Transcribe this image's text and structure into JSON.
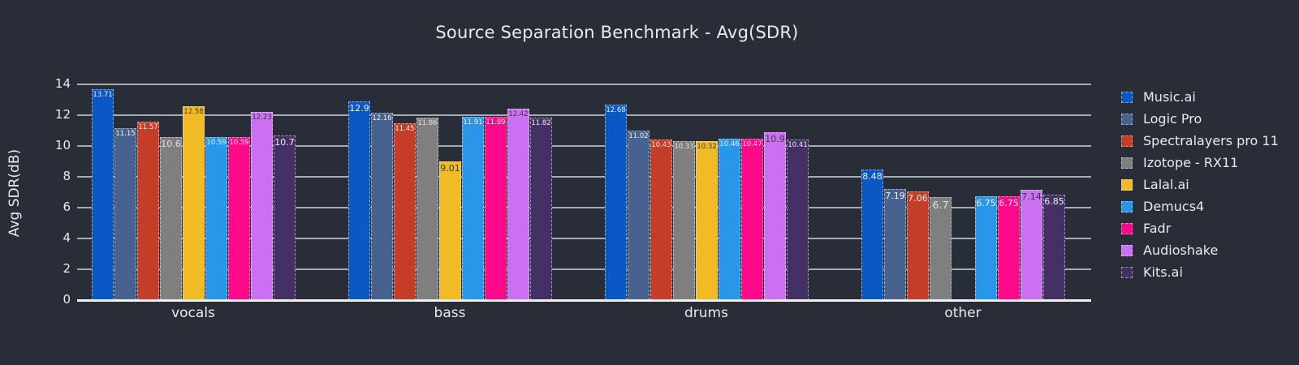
{
  "colors": {
    "background": "#282d37",
    "gridline": "#a6abb3",
    "axis_line": "#efefef",
    "text": "#e8eaed",
    "dark_label": "#3a3a3a",
    "light_label": "#f0f0f0"
  },
  "chart_data": {
    "type": "bar",
    "title": "Source Separation Benchmark - Avg(SDR)",
    "xlabel": "",
    "ylabel": "Avg SDR(dB)",
    "categories": [
      "vocals",
      "bass",
      "drums",
      "other"
    ],
    "yticks": [
      0,
      2,
      4,
      6,
      8,
      10,
      12,
      14
    ],
    "ylim": [
      0,
      14
    ],
    "grid": true,
    "legend_position": "right",
    "series": [
      {
        "name": "Music.ai",
        "color": "#0a58c4",
        "label_color": "#f0f0f0",
        "values": [
          13.71,
          12.9,
          12.68,
          8.48
        ]
      },
      {
        "name": "Logic Pro",
        "color": "#47628f",
        "label_color": "#f0f0f0",
        "values": [
          11.15,
          12.16,
          11.02,
          7.19
        ]
      },
      {
        "name": "Spectralayers pro 11",
        "color": "#c43d27",
        "label_color": "#f0f0f0",
        "values": [
          11.57,
          11.45,
          10.43,
          7.06
        ]
      },
      {
        "name": "Izotope - RX11",
        "color": "#7f7f7f",
        "label_color": "#e2e2e2",
        "values": [
          10.6,
          11.86,
          10.33,
          6.7
        ]
      },
      {
        "name": "Lalal.ai",
        "color": "#f1bb26",
        "label_color": "#3a3a3a",
        "values": [
          12.58,
          9.01,
          10.32,
          null
        ]
      },
      {
        "name": "Demucs4",
        "color": "#2a96ea",
        "label_color": "#f0f0f0",
        "values": [
          10.59,
          11.91,
          10.46,
          6.75
        ]
      },
      {
        "name": "Fadr",
        "color": "#fc0a8a",
        "label_color": "#f0f0f0",
        "values": [
          10.59,
          11.89,
          10.47,
          6.75
        ]
      },
      {
        "name": "Audioshake",
        "color": "#cb70f2",
        "label_color": "#3a3a3a",
        "values": [
          12.23,
          12.42,
          10.9,
          7.14
        ]
      },
      {
        "name": "Kits.ai",
        "color": "#443064",
        "label_color": "#f0f0f0",
        "values": [
          10.7,
          11.82,
          10.41,
          6.85
        ]
      }
    ]
  }
}
